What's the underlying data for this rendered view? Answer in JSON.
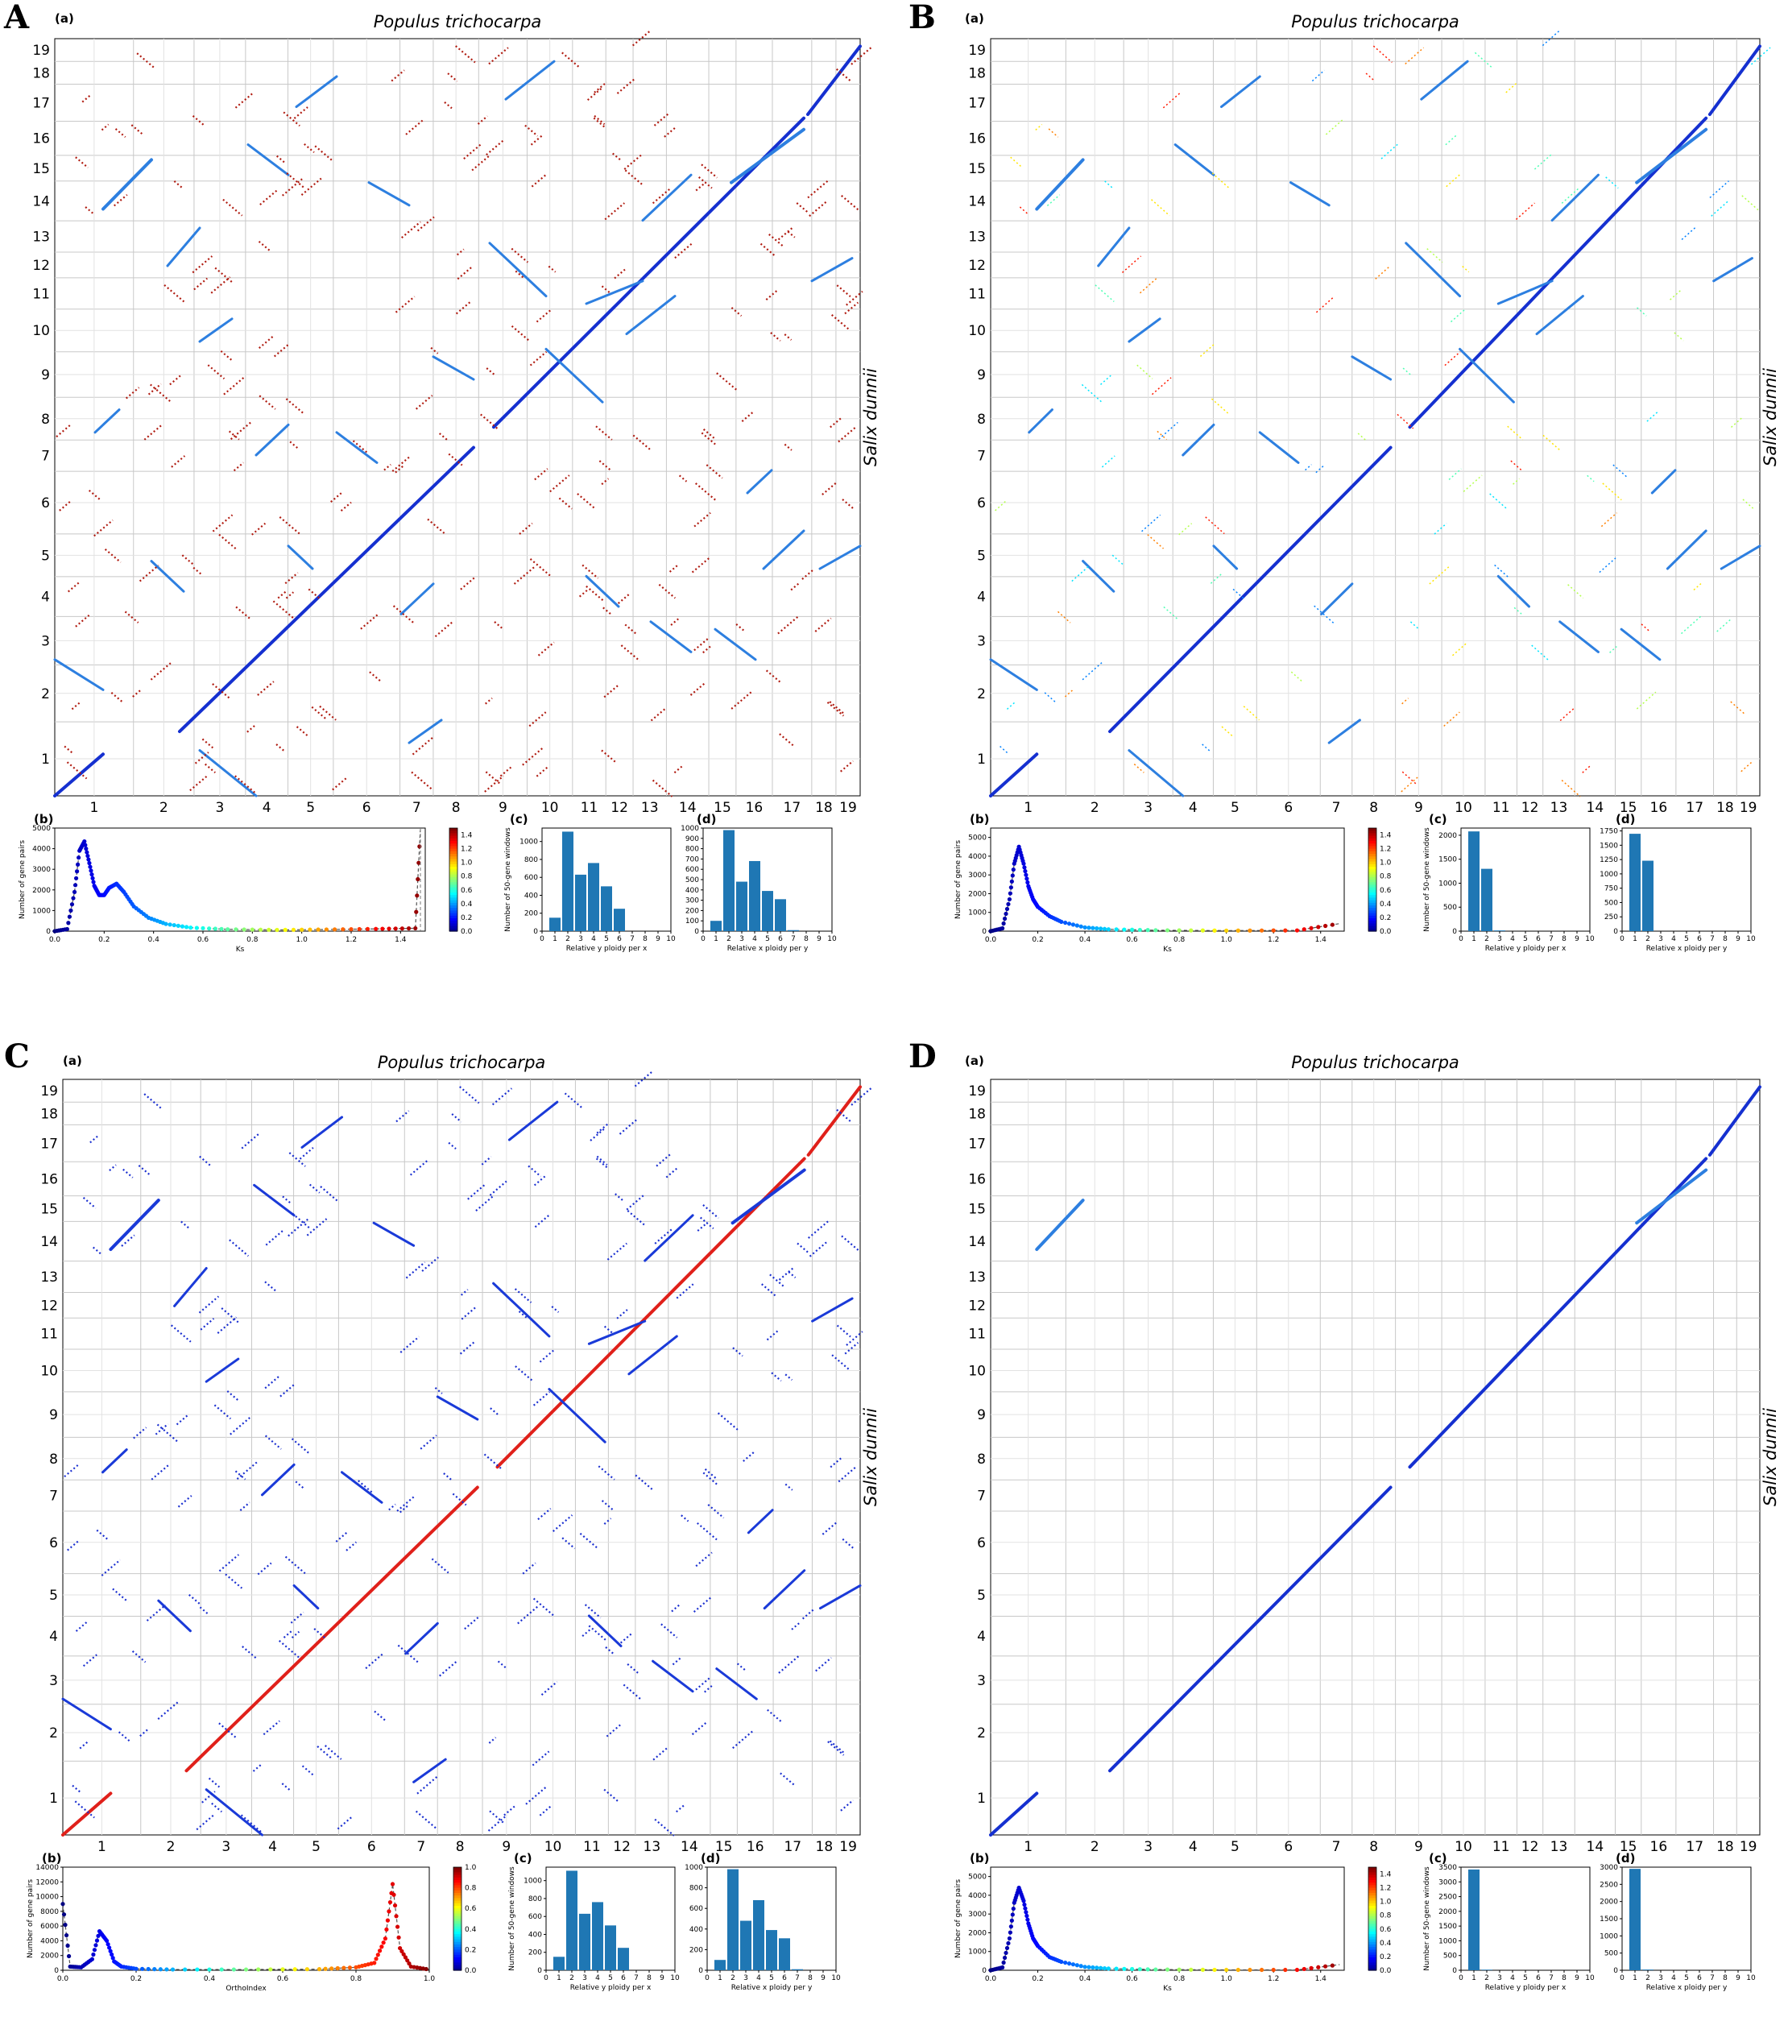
{
  "figure": {
    "panels": [
      {
        "letter": "A",
        "title": "Populus trichocarpa",
        "ylabel": "Salix dunnii",
        "color_mode": "ks",
        "b_xlabel": "Ks",
        "b_ylabel": "Number of gene pairs",
        "b_ymax": 5000,
        "b_yticks": [
          0,
          1000,
          2000,
          3000,
          4000,
          5000
        ],
        "b_xticks": [
          "0.0",
          "0.2",
          "0.4",
          "0.6",
          "0.8",
          "1.0",
          "1.2",
          "1.4"
        ],
        "cbar_ticks": [
          "1.4",
          "1.2",
          "1.0",
          "0.8",
          "0.6",
          "0.4",
          "0.2",
          "0.0"
        ],
        "c_ymax": 1100,
        "c_yticks": [
          0,
          200,
          400,
          600,
          800,
          1000
        ],
        "d_ymax": 1000,
        "d_yticks": [
          0,
          100,
          200,
          300,
          400,
          500,
          600,
          700,
          800,
          900,
          1000
        ]
      },
      {
        "letter": "B",
        "title": "Populus trichocarpa",
        "ylabel": "Salix dunnii",
        "color_mode": "ks",
        "b_xlabel": "Ks",
        "b_ylabel": "Number of gene pairs",
        "b_ymax": 5000,
        "b_yticks": [
          0,
          1000,
          2000,
          3000,
          4000,
          5000
        ],
        "b_xticks": [
          "0.0",
          "0.2",
          "0.4",
          "0.6",
          "0.8",
          "1.0",
          "1.2",
          "1.4"
        ],
        "cbar_ticks": [
          "1.4",
          "1.2",
          "1.0",
          "0.8",
          "0.6",
          "0.4",
          "0.2",
          "0.0"
        ],
        "c_ymax": 2100,
        "c_yticks": [
          0,
          500,
          1000,
          1500,
          2000
        ],
        "d_ymax": 1750,
        "d_yticks": [
          0,
          250,
          500,
          750,
          1000,
          1250,
          1500,
          1750
        ]
      },
      {
        "letter": "C",
        "title": "Populus trichocarpa",
        "ylabel": "Salix dunnii",
        "color_mode": "ortho",
        "b_xlabel": "OrthoIndex",
        "b_ylabel": "Number of gene pairs",
        "b_ymax": 14000,
        "b_yticks": [
          0,
          2000,
          4000,
          6000,
          8000,
          10000,
          12000,
          14000
        ],
        "b_xticks": [
          "0.0",
          "0.2",
          "0.4",
          "0.6",
          "0.8",
          "1.0"
        ],
        "cbar_ticks": [
          "1.0",
          "0.8",
          "0.6",
          "0.4",
          "0.2",
          "0.0"
        ],
        "c_ymax": 1100,
        "c_yticks": [
          0,
          200,
          400,
          600,
          800,
          1000
        ],
        "d_ymax": 1000,
        "d_yticks": [
          0,
          200,
          400,
          600,
          800,
          1000
        ]
      },
      {
        "letter": "D",
        "title": "Populus trichocarpa",
        "ylabel": "Salix dunnii",
        "color_mode": "ks",
        "b_xlabel": "Ks",
        "b_ylabel": "Number of gene pairs",
        "b_ymax": 5000,
        "b_yticks": [
          0,
          1000,
          2000,
          3000,
          4000,
          5000
        ],
        "b_xticks": [
          "0.0",
          "0.2",
          "0.4",
          "0.6",
          "0.8",
          "1.0",
          "1.2",
          "1.4"
        ],
        "cbar_ticks": [
          "1.4",
          "1.2",
          "1.0",
          "0.8",
          "0.6",
          "0.4",
          "0.2",
          "0.0"
        ],
        "c_ymax": 3500,
        "c_yticks": [
          0,
          500,
          1000,
          1500,
          2000,
          2500,
          3000,
          3500
        ],
        "d_ymax": 3000,
        "d_yticks": [
          0,
          500,
          1000,
          1500,
          2000,
          2500,
          3000
        ]
      }
    ],
    "sub_labels": {
      "a": "(a)",
      "b": "(b)",
      "c": "(c)",
      "d": "(d)"
    },
    "c_xlabel": "Relative y ploidy per x",
    "d_xlabel": "Relative x ploidy per y",
    "cd_ylabel": "Number of 50-gene windows",
    "ploidy_ticks": [
      "0",
      "1",
      "2",
      "3",
      "4",
      "5",
      "6",
      "7",
      "8",
      "9",
      "10"
    ],
    "chromosomes": [
      "1",
      "2",
      "3",
      "4",
      "5",
      "6",
      "7",
      "8",
      "9",
      "10",
      "11",
      "12",
      "13",
      "14",
      "15",
      "16",
      "17",
      "18",
      "19"
    ]
  },
  "chart_data": [
    {
      "type": "scatter",
      "panel": "A(a)",
      "title": "Populus trichocarpa",
      "xlabel": "",
      "ylabel": "Salix dunnii",
      "x_categories": [
        "1",
        "2",
        "3",
        "4",
        "5",
        "6",
        "7",
        "8",
        "9",
        "10",
        "11",
        "12",
        "13",
        "14",
        "15",
        "16",
        "17",
        "18",
        "19"
      ],
      "y_categories": [
        "1",
        "2",
        "3",
        "4",
        "5",
        "6",
        "7",
        "8",
        "9",
        "10",
        "11",
        "12",
        "13",
        "14",
        "15",
        "16",
        "17",
        "18",
        "19"
      ],
      "grid": true,
      "color_scale": "Ks",
      "description_of_series": "main diagonal orthologous synteny (Ks≈0.1) plus paralogous blocks"
    },
    {
      "type": "line",
      "panel": "A(b)",
      "xlabel": "Ks",
      "ylabel": "Number of gene pairs",
      "xlim": [
        0,
        1.5
      ],
      "ylim": [
        0,
        5000
      ],
      "x": [
        0.0,
        0.05,
        0.08,
        0.1,
        0.12,
        0.14,
        0.16,
        0.18,
        0.2,
        0.22,
        0.25,
        0.28,
        0.32,
        0.38,
        0.45,
        0.55,
        0.7,
        0.9,
        1.1,
        1.3,
        1.46,
        1.48
      ],
      "y": [
        0,
        100,
        1900,
        3900,
        4350,
        3300,
        2200,
        1750,
        1750,
        2100,
        2300,
        1900,
        1200,
        650,
        350,
        170,
        90,
        60,
        80,
        110,
        140,
        4900
      ]
    },
    {
      "type": "bar",
      "panel": "A(c)",
      "xlabel": "Relative y ploidy per x",
      "ylabel": "Number of 50-gene windows",
      "ylim": [
        0,
        1150
      ],
      "categories": [
        "1",
        "2",
        "3",
        "4",
        "5",
        "6"
      ],
      "values": [
        150,
        1110,
        630,
        760,
        500,
        250
      ]
    },
    {
      "type": "bar",
      "panel": "A(d)",
      "xlabel": "Relative x ploidy per y",
      "ylabel": "",
      "ylim": [
        0,
        1000
      ],
      "categories": [
        "1",
        "2",
        "3",
        "4",
        "5",
        "6",
        "7"
      ],
      "values": [
        100,
        980,
        480,
        680,
        390,
        310,
        10
      ]
    },
    {
      "type": "line",
      "panel": "B(b)",
      "xlabel": "Ks",
      "ylabel": "Number of gene pairs",
      "xlim": [
        0,
        1.5
      ],
      "ylim": [
        0,
        5500
      ],
      "x": [
        0.0,
        0.05,
        0.08,
        0.1,
        0.12,
        0.14,
        0.16,
        0.18,
        0.2,
        0.25,
        0.3,
        0.4,
        0.5,
        0.7,
        1.0,
        1.3,
        1.48
      ],
      "y": [
        0,
        150,
        1700,
        3600,
        4500,
        3600,
        2400,
        1700,
        1300,
        800,
        500,
        200,
        100,
        50,
        30,
        40,
        400
      ]
    },
    {
      "type": "bar",
      "panel": "B(c)",
      "xlabel": "Relative y ploidy per x",
      "ylabel": "Number of 50-gene windows",
      "ylim": [
        0,
        2150
      ],
      "categories": [
        "1",
        "2",
        "3"
      ],
      "values": [
        2080,
        1300,
        15
      ]
    },
    {
      "type": "bar",
      "panel": "B(d)",
      "xlabel": "Relative x ploidy per y",
      "ylabel": "",
      "ylim": [
        0,
        1800
      ],
      "categories": [
        "1",
        "2"
      ],
      "values": [
        1700,
        1230
      ]
    },
    {
      "type": "line",
      "panel": "C(b)",
      "xlabel": "OrthoIndex",
      "ylabel": "Number of gene pairs",
      "xlim": [
        0,
        1.0
      ],
      "ylim": [
        0,
        14000
      ],
      "x": [
        0.0,
        0.02,
        0.05,
        0.08,
        0.1,
        0.12,
        0.14,
        0.16,
        0.2,
        0.3,
        0.5,
        0.7,
        0.8,
        0.85,
        0.88,
        0.9,
        0.92,
        0.95,
        1.0
      ],
      "y": [
        9000,
        500,
        400,
        1500,
        5300,
        4000,
        1200,
        500,
        200,
        100,
        100,
        150,
        400,
        1000,
        4300,
        11700,
        3000,
        500,
        100
      ]
    },
    {
      "type": "bar",
      "panel": "C(c)",
      "xlabel": "Relative y ploidy per x",
      "ylabel": "Number of 50-gene windows",
      "ylim": [
        0,
        1150
      ],
      "categories": [
        "1",
        "2",
        "3",
        "4",
        "5",
        "6"
      ],
      "values": [
        150,
        1110,
        630,
        760,
        500,
        250
      ]
    },
    {
      "type": "bar",
      "panel": "C(d)",
      "xlabel": "Relative x ploidy per y",
      "ylabel": "",
      "ylim": [
        0,
        1000
      ],
      "categories": [
        "1",
        "2",
        "3",
        "4",
        "5",
        "6",
        "7"
      ],
      "values": [
        100,
        980,
        480,
        680,
        390,
        310,
        10
      ]
    },
    {
      "type": "line",
      "panel": "D(b)",
      "xlabel": "Ks",
      "ylabel": "Number of gene pairs",
      "xlim": [
        0,
        1.5
      ],
      "ylim": [
        0,
        5500
      ],
      "x": [
        0.0,
        0.05,
        0.08,
        0.1,
        0.12,
        0.14,
        0.16,
        0.18,
        0.2,
        0.25,
        0.3,
        0.4,
        0.5,
        0.7,
        1.0,
        1.3,
        1.48
      ],
      "y": [
        0,
        150,
        1700,
        3600,
        4400,
        3700,
        2500,
        1700,
        1300,
        700,
        450,
        180,
        90,
        40,
        20,
        20,
        300
      ]
    },
    {
      "type": "bar",
      "panel": "D(c)",
      "xlabel": "Relative y ploidy per x",
      "ylabel": "Number of 50-gene windows",
      "ylim": [
        0,
        3500
      ],
      "categories": [
        "1",
        "2"
      ],
      "values": [
        3420,
        20
      ]
    },
    {
      "type": "bar",
      "panel": "D(d)",
      "xlabel": "Relative x ploidy per y",
      "ylabel": "",
      "ylim": [
        0,
        3000
      ],
      "categories": [
        "1",
        "2"
      ],
      "values": [
        2950,
        20
      ]
    }
  ]
}
